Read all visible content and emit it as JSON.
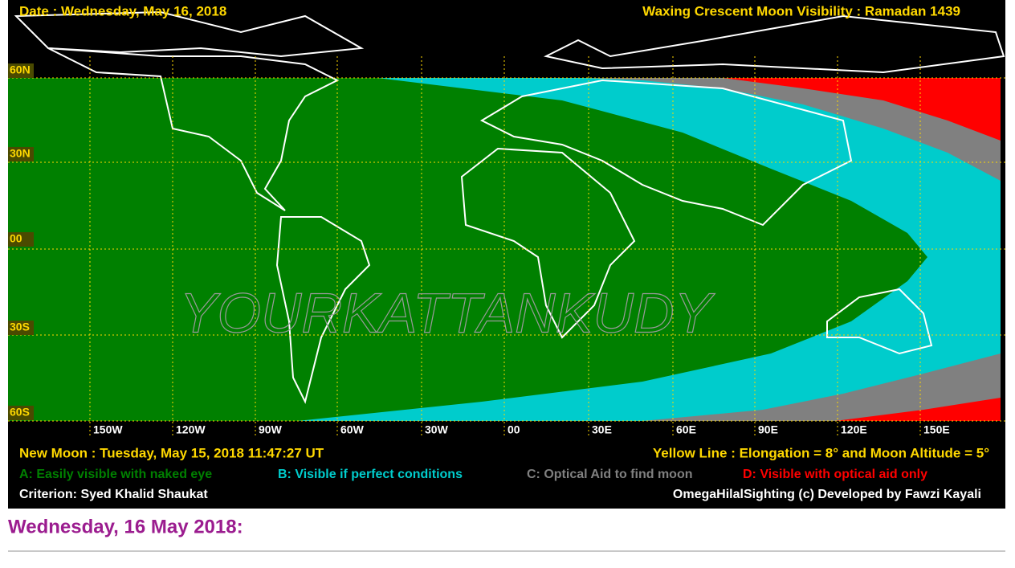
{
  "header": {
    "date": "Date : Wednesday, May 16, 2018",
    "title": "Waxing Crescent Moon Visibility : Ramadan 1439"
  },
  "map": {
    "lat_labels": [
      "60N",
      "30N",
      "00",
      "30S",
      "60S"
    ],
    "lon_labels": [
      "150W",
      "120W",
      "90W",
      "60W",
      "30W",
      "00",
      "30E",
      "60E",
      "90E",
      "120E",
      "150E"
    ],
    "watermark": "YOURKATTANKUDY"
  },
  "footer": {
    "new_moon": "New Moon : Tuesday, May 15, 2018  11:47:27  UT",
    "yellow_line": "Yellow Line : Elongation = 8° and Moon Altitude = 5°",
    "legend": [
      "A: Easily visible with naked eye",
      "B: Visible if perfect conditions",
      "C: Optical Aid to find moon",
      "D: Visible with optical aid only"
    ],
    "criterion": "Criterion: Syed Khalid Shaukat",
    "credit": "OmegaHilalSighting  (c)  Developed by Fawzi Kayali"
  },
  "heading": "Wednesday, 16 May 2018:"
}
